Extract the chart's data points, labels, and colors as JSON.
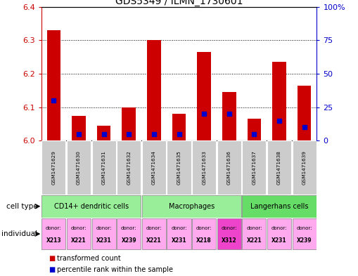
{
  "title": "GDS5349 / ILMN_1730601",
  "samples": [
    "GSM1471629",
    "GSM1471630",
    "GSM1471631",
    "GSM1471632",
    "GSM1471634",
    "GSM1471635",
    "GSM1471633",
    "GSM1471636",
    "GSM1471637",
    "GSM1471638",
    "GSM1471639"
  ],
  "transformed_counts": [
    6.33,
    6.075,
    6.045,
    6.1,
    6.3,
    6.08,
    6.265,
    6.145,
    6.065,
    6.235,
    6.165
  ],
  "percentile_ranks": [
    30,
    5,
    5,
    5,
    5,
    5,
    20,
    20,
    5,
    15,
    10
  ],
  "ymin": 6.0,
  "ymax": 6.4,
  "y_ticks": [
    6.0,
    6.1,
    6.2,
    6.3,
    6.4
  ],
  "y2min": 0,
  "y2max": 100,
  "y2_ticks": [
    0,
    25,
    50,
    75,
    100
  ],
  "y2_tick_labels": [
    "0",
    "25",
    "50",
    "75",
    "100%"
  ],
  "bar_color": "#cc0000",
  "percentile_color": "#0000cc",
  "cell_type_groups": [
    {
      "label": "CD14+ dendritic cells",
      "start": 0,
      "end": 3,
      "color": "#99ee99"
    },
    {
      "label": "Macrophages",
      "start": 4,
      "end": 7,
      "color": "#99ee99"
    },
    {
      "label": "Langerhans cells",
      "start": 8,
      "end": 10,
      "color": "#66dd66"
    }
  ],
  "individual_donors": [
    "X213",
    "X221",
    "X231",
    "X239",
    "X221",
    "X231",
    "X218",
    "X312",
    "X221",
    "X231",
    "X239"
  ],
  "donor_colors": [
    "#ffaaee",
    "#ffaaee",
    "#ffaaee",
    "#ffaaee",
    "#ffaaee",
    "#ffaaee",
    "#ffaaee",
    "#ee44cc",
    "#ffaaee",
    "#ffaaee",
    "#ffaaee"
  ],
  "bg_color_sample": "#cccccc",
  "legend_items": [
    {
      "label": "transformed count",
      "color": "#cc0000"
    },
    {
      "label": "percentile rank within the sample",
      "color": "#0000cc"
    }
  ]
}
